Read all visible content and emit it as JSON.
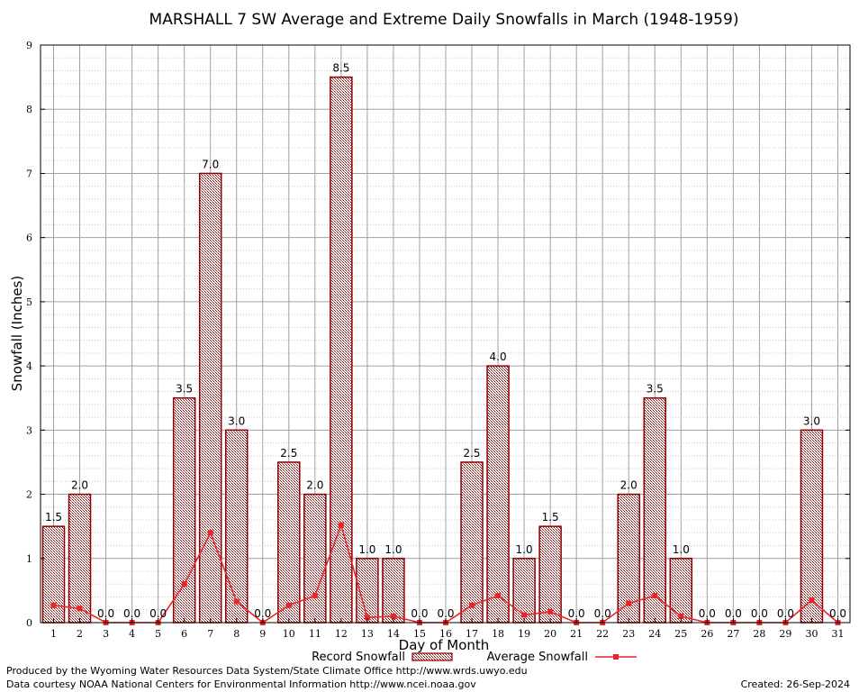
{
  "chart_data": {
    "type": "bar",
    "title": "MARSHALL 7 SW Average and Extreme Daily Snowfalls in March (1948-1959)",
    "xlabel": "Day of Month",
    "ylabel": "Snowfall (Inches)",
    "ylim": [
      0,
      9
    ],
    "yticks": [
      "0",
      "1",
      "2",
      "3",
      "4",
      "5",
      "6",
      "7",
      "8",
      "9"
    ],
    "categories": [
      "1",
      "2",
      "3",
      "4",
      "5",
      "6",
      "7",
      "8",
      "9",
      "10",
      "11",
      "12",
      "13",
      "14",
      "15",
      "16",
      "17",
      "18",
      "19",
      "20",
      "21",
      "22",
      "23",
      "24",
      "25",
      "26",
      "27",
      "28",
      "29",
      "30",
      "31"
    ],
    "grid": true,
    "series": [
      {
        "name": "Record Snowfall",
        "type": "bar",
        "values": [
          1.5,
          2.0,
          0.0,
          0.0,
          0.0,
          3.5,
          7.0,
          3.0,
          0.0,
          2.5,
          2.0,
          8.5,
          1.0,
          1.0,
          0.0,
          0.0,
          2.5,
          4.0,
          1.0,
          1.5,
          0.0,
          0.0,
          2.0,
          3.5,
          1.0,
          0.0,
          0.0,
          0.0,
          0.0,
          3.0,
          0.0
        ],
        "labels": [
          "1.5",
          "2.0",
          "0.0",
          "0.0",
          "0.0",
          "3.5",
          "7.0",
          "3.0",
          "0.0",
          "2.5",
          "2.0",
          "8.5",
          "1.0",
          "1.0",
          "0.0",
          "0.0",
          "2.5",
          "4.0",
          "1.0",
          "1.5",
          "0.0",
          "0.0",
          "2.0",
          "3.5",
          "1.0",
          "0.0",
          "0.0",
          "0.0",
          "0.0",
          "3.0",
          "0.0"
        ],
        "color": "#8b0000"
      },
      {
        "name": "Average Snowfall",
        "type": "line",
        "values": [
          0.27,
          0.22,
          0.0,
          0.0,
          0.0,
          0.6,
          1.4,
          0.33,
          0.0,
          0.27,
          0.42,
          1.52,
          0.08,
          0.1,
          0.0,
          0.0,
          0.27,
          0.42,
          0.12,
          0.17,
          0.0,
          0.0,
          0.3,
          0.42,
          0.1,
          0.0,
          0.0,
          0.0,
          0.0,
          0.35,
          0.0
        ],
        "color": "#e8262a"
      }
    ],
    "legend_position": "bottom"
  },
  "footer": {
    "left_line1": "Produced by the Wyoming Water Resources Data System/State Climate Office http://www.wrds.uwyo.edu",
    "left_line2": "Data courtesy NOAA National Centers for Environmental Information http://www.ncei.noaa.gov",
    "created": "Created:  26-Sep-2024"
  }
}
